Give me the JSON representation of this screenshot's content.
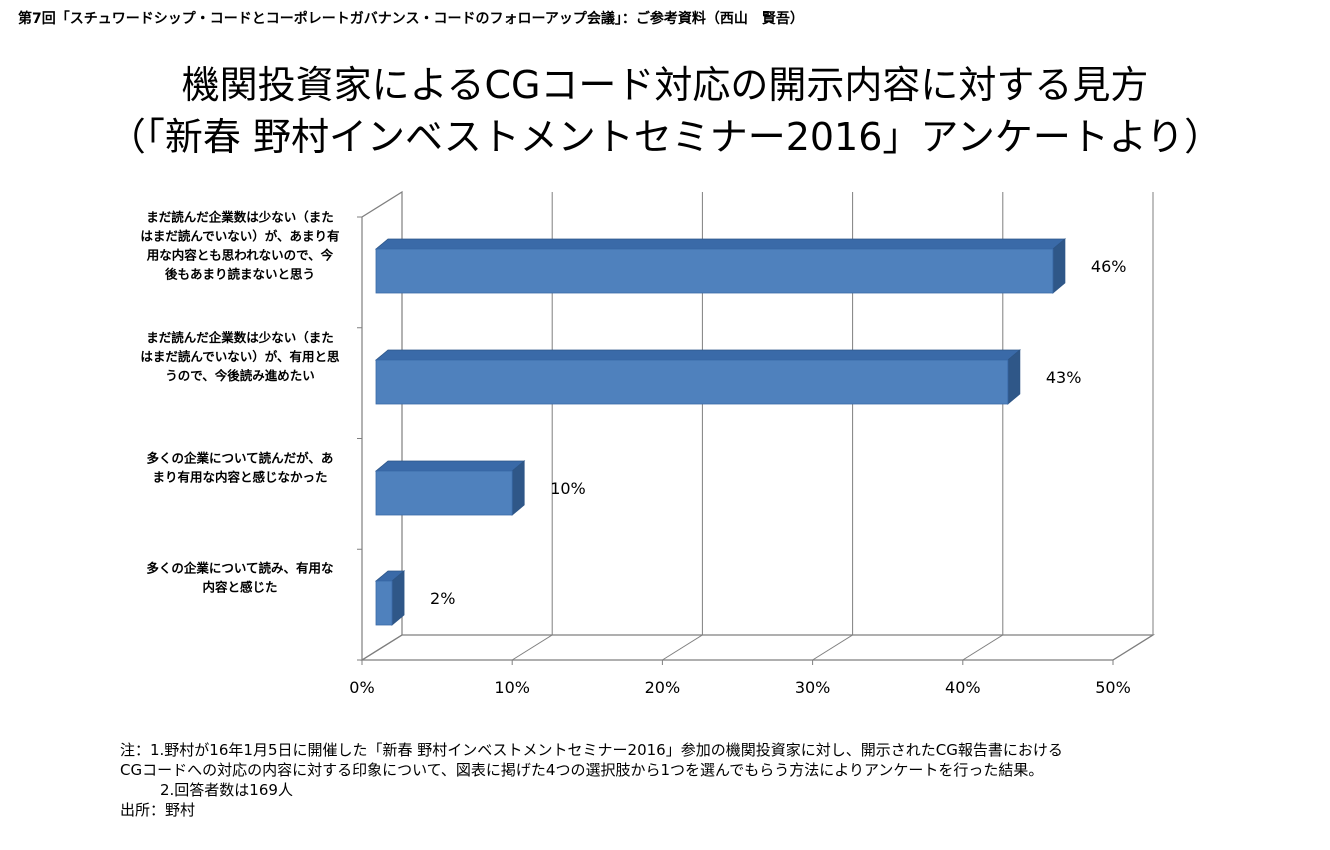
{
  "header": "第7回「スチュワードシップ・コードとコーポレートガバナンス・コードのフォローアップ会議」：ご参考資料（西山　賢吾）",
  "title_line1": "機関投資家によるCGコード対応の開示内容に対する見方",
  "title_line2": "（「新春 野村インベストメントセミナー2016」アンケートより）",
  "chart_data": {
    "type": "bar",
    "orientation": "horizontal",
    "style": "3d",
    "categories": [
      [
        "まだ読んだ企業数は少ない（また",
        "はまだ読んでいない）が、あまり有",
        "用な内容とも思われないので、今",
        "後もあまり読まないと思う"
      ],
      [
        "まだ読んだ企業数は少ない（また",
        "はまだ読んでいない）が、有用と思",
        "うので、今後読み進めたい"
      ],
      [
        "多くの企業について読んだが、あ",
        "まり有用な内容と感じなかった"
      ],
      [
        "多くの企業について読み、有用な",
        "内容と感じた"
      ]
    ],
    "values": [
      46,
      43,
      10,
      2
    ],
    "labels": [
      "46%",
      "43%",
      "10%",
      "2%"
    ],
    "xticks": [
      "0%",
      "10%",
      "20%",
      "30%",
      "40%",
      "50%"
    ],
    "xlim": [
      0,
      50
    ],
    "grid": true,
    "bar_color": "#4f81bd"
  },
  "notes": [
    "注：1.野村が16年1月5日に開催した「新春 野村インベストメントセミナー2016」参加の機関投資家に対し、開示されたCG報告書における",
    "CGコードへの対応の内容に対する印象について、図表に掲げた4つの選択肢から1つを選んでもらう方法によりアンケートを行った結果。",
    "2.回答者数は169人",
    "出所：野村"
  ]
}
